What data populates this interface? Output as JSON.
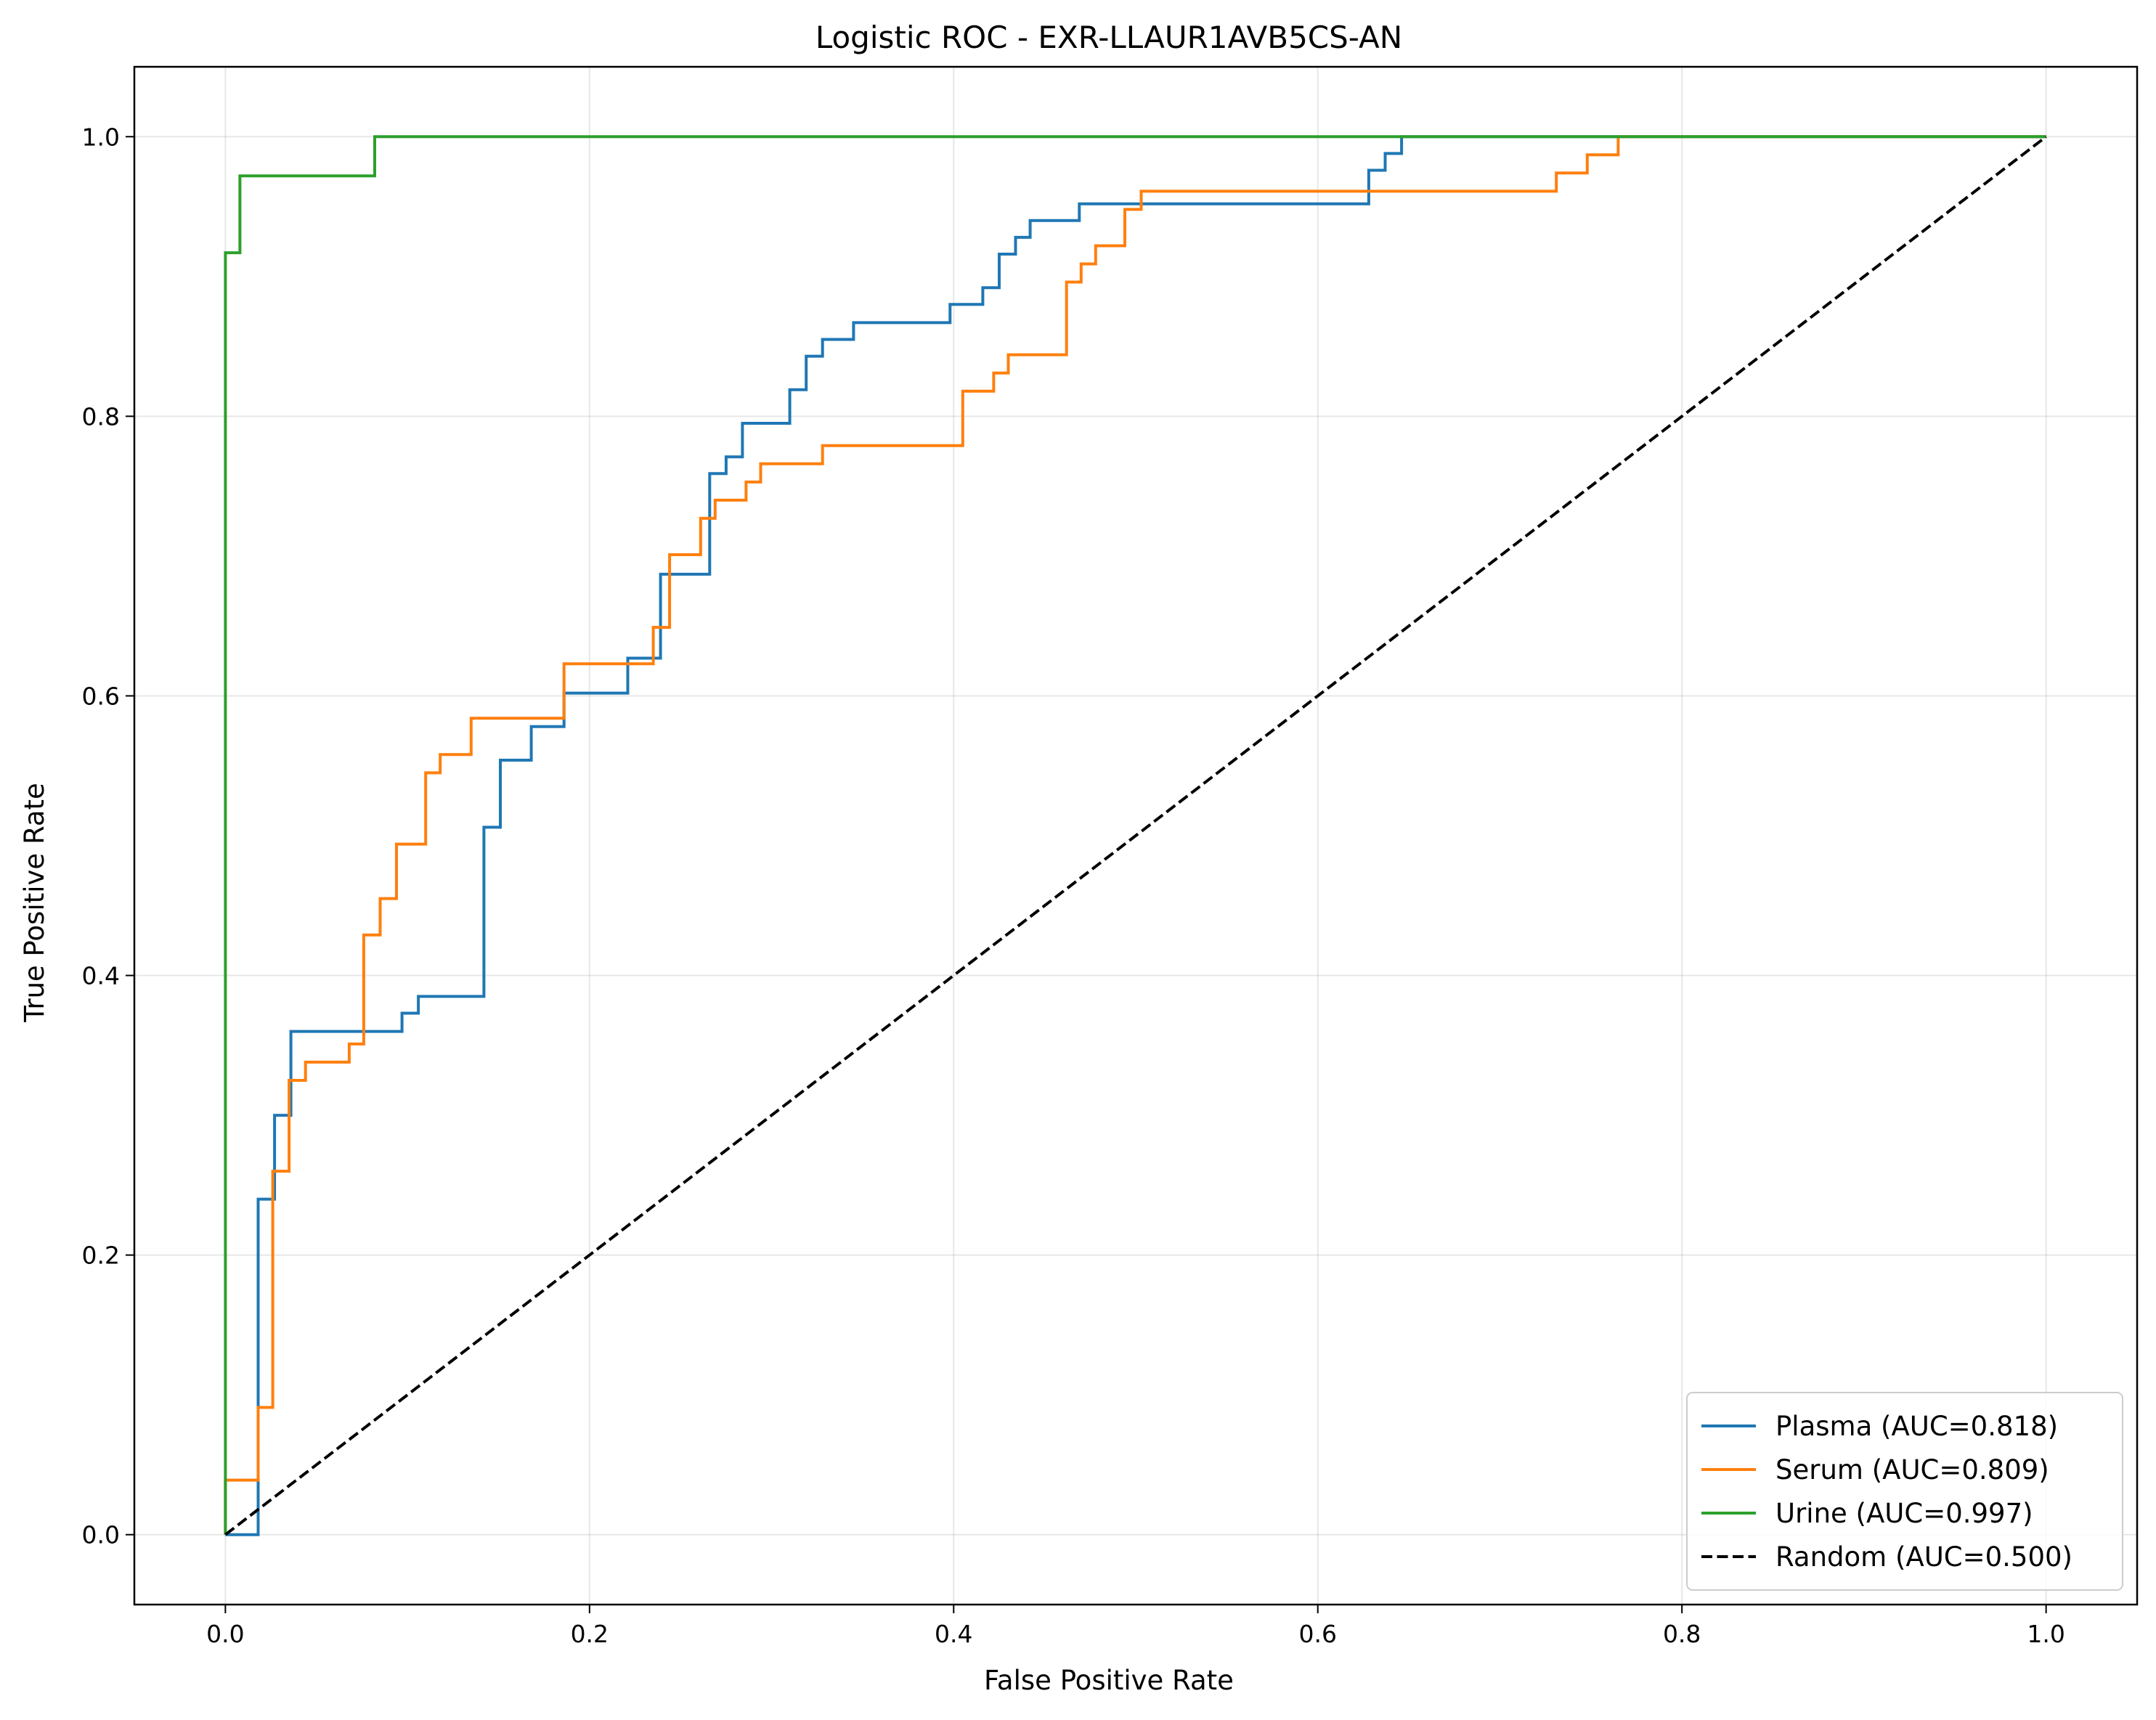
{
  "chart_data": {
    "type": "line",
    "title": "Logistic ROC - EXR-LLAUR1AVB5CS-AN",
    "xlabel": "False Positive Rate",
    "ylabel": "True Positive Rate",
    "xlim": [
      -0.05,
      1.05
    ],
    "ylim": [
      -0.05,
      1.05
    ],
    "xticks": [
      "0.0",
      "0.2",
      "0.4",
      "0.6",
      "0.8",
      "1.0"
    ],
    "yticks": [
      "0.0",
      "0.2",
      "0.4",
      "0.6",
      "0.8",
      "1.0"
    ],
    "grid": true,
    "legend_position": "lower-right",
    "series": [
      {
        "name": "Plasma (AUC=0.818)",
        "color": "#1f77b4",
        "dash": "solid",
        "step": true,
        "points": [
          [
            0.0,
            0.0
          ],
          [
            0.018,
            0.0
          ],
          [
            0.018,
            0.24
          ],
          [
            0.027,
            0.24
          ],
          [
            0.027,
            0.3
          ],
          [
            0.036,
            0.3
          ],
          [
            0.036,
            0.36
          ],
          [
            0.097,
            0.36
          ],
          [
            0.097,
            0.373
          ],
          [
            0.106,
            0.373
          ],
          [
            0.106,
            0.385
          ],
          [
            0.142,
            0.385
          ],
          [
            0.142,
            0.506
          ],
          [
            0.151,
            0.506
          ],
          [
            0.151,
            0.554
          ],
          [
            0.168,
            0.554
          ],
          [
            0.168,
            0.578
          ],
          [
            0.186,
            0.578
          ],
          [
            0.186,
            0.602
          ],
          [
            0.221,
            0.602
          ],
          [
            0.221,
            0.627
          ],
          [
            0.239,
            0.627
          ],
          [
            0.239,
            0.687
          ],
          [
            0.266,
            0.687
          ],
          [
            0.266,
            0.759
          ],
          [
            0.275,
            0.759
          ],
          [
            0.275,
            0.771
          ],
          [
            0.284,
            0.771
          ],
          [
            0.284,
            0.795
          ],
          [
            0.31,
            0.795
          ],
          [
            0.31,
            0.819
          ],
          [
            0.319,
            0.819
          ],
          [
            0.319,
            0.843
          ],
          [
            0.328,
            0.843
          ],
          [
            0.328,
            0.855
          ],
          [
            0.345,
            0.855
          ],
          [
            0.345,
            0.867
          ],
          [
            0.398,
            0.867
          ],
          [
            0.398,
            0.88
          ],
          [
            0.416,
            0.88
          ],
          [
            0.416,
            0.892
          ],
          [
            0.425,
            0.892
          ],
          [
            0.425,
            0.916
          ],
          [
            0.434,
            0.916
          ],
          [
            0.434,
            0.928
          ],
          [
            0.442,
            0.928
          ],
          [
            0.442,
            0.94
          ],
          [
            0.469,
            0.94
          ],
          [
            0.469,
            0.952
          ],
          [
            0.628,
            0.952
          ],
          [
            0.628,
            0.976
          ],
          [
            0.637,
            0.976
          ],
          [
            0.637,
            0.988
          ],
          [
            0.646,
            0.988
          ],
          [
            0.646,
            1.0
          ],
          [
            1.0,
            1.0
          ]
        ]
      },
      {
        "name": "Serum (AUC=0.809)",
        "color": "#ff7f0e",
        "dash": "solid",
        "step": true,
        "points": [
          [
            0.0,
            0.0
          ],
          [
            0.0,
            0.039
          ],
          [
            0.018,
            0.039
          ],
          [
            0.018,
            0.091
          ],
          [
            0.026,
            0.091
          ],
          [
            0.026,
            0.26
          ],
          [
            0.035,
            0.26
          ],
          [
            0.035,
            0.325
          ],
          [
            0.044,
            0.325
          ],
          [
            0.044,
            0.338
          ],
          [
            0.068,
            0.338
          ],
          [
            0.068,
            0.351
          ],
          [
            0.076,
            0.351
          ],
          [
            0.076,
            0.429
          ],
          [
            0.085,
            0.429
          ],
          [
            0.085,
            0.455
          ],
          [
            0.094,
            0.455
          ],
          [
            0.094,
            0.494
          ],
          [
            0.11,
            0.494
          ],
          [
            0.11,
            0.545
          ],
          [
            0.118,
            0.545
          ],
          [
            0.118,
            0.558
          ],
          [
            0.135,
            0.558
          ],
          [
            0.135,
            0.584
          ],
          [
            0.186,
            0.584
          ],
          [
            0.186,
            0.623
          ],
          [
            0.235,
            0.623
          ],
          [
            0.235,
            0.649
          ],
          [
            0.244,
            0.649
          ],
          [
            0.244,
            0.701
          ],
          [
            0.261,
            0.701
          ],
          [
            0.261,
            0.727
          ],
          [
            0.269,
            0.727
          ],
          [
            0.269,
            0.74
          ],
          [
            0.286,
            0.74
          ],
          [
            0.286,
            0.753
          ],
          [
            0.294,
            0.753
          ],
          [
            0.294,
            0.766
          ],
          [
            0.328,
            0.766
          ],
          [
            0.328,
            0.779
          ],
          [
            0.405,
            0.779
          ],
          [
            0.405,
            0.818
          ],
          [
            0.422,
            0.818
          ],
          [
            0.422,
            0.831
          ],
          [
            0.43,
            0.831
          ],
          [
            0.43,
            0.844
          ],
          [
            0.462,
            0.844
          ],
          [
            0.462,
            0.896
          ],
          [
            0.47,
            0.896
          ],
          [
            0.47,
            0.909
          ],
          [
            0.478,
            0.909
          ],
          [
            0.478,
            0.922
          ],
          [
            0.494,
            0.922
          ],
          [
            0.494,
            0.948
          ],
          [
            0.503,
            0.948
          ],
          [
            0.503,
            0.961
          ],
          [
            0.731,
            0.961
          ],
          [
            0.731,
            0.974
          ],
          [
            0.748,
            0.974
          ],
          [
            0.748,
            0.987
          ],
          [
            0.765,
            0.987
          ],
          [
            0.765,
            1.0
          ],
          [
            1.0,
            1.0
          ]
        ]
      },
      {
        "name": "Urine (AUC=0.997)",
        "color": "#2ca02c",
        "dash": "solid",
        "step": true,
        "points": [
          [
            0.0,
            0.0
          ],
          [
            0.0,
            0.917
          ],
          [
            0.008,
            0.917
          ],
          [
            0.008,
            0.972
          ],
          [
            0.082,
            0.972
          ],
          [
            0.082,
            1.0
          ],
          [
            1.0,
            1.0
          ]
        ]
      },
      {
        "name": "Random (AUC=0.500)",
        "color": "#000000",
        "dash": "dashed",
        "step": false,
        "points": [
          [
            0.0,
            0.0
          ],
          [
            1.0,
            1.0
          ]
        ]
      }
    ]
  }
}
